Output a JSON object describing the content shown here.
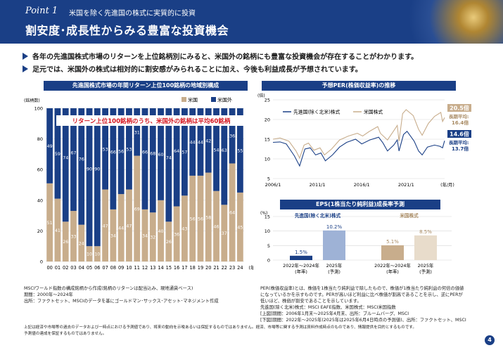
{
  "header": {
    "point_label": "Point 1",
    "point_subtitle": "米国を除く先進国の株式に実質的に投資",
    "title": "割安度･成長性からみる豊富な投資機会"
  },
  "bullets": [
    "各年の先進国株式市場のリターンを上位銘柄別にみると、米国外の銘柄にも豊富な投資機会が存在することがわかります。",
    "足元では、米国外の株式は相対的に割安感がみられることに加え、今後も利益成長が予想されています。"
  ],
  "chart_data": [
    {
      "type": "bar",
      "title": "先進国株式市場の年間リターン上位100銘柄の地域別構成",
      "ylabel": "(銘柄数)",
      "xlabel_suffix": "(年)",
      "ylim": [
        0,
        100
      ],
      "yticks": [
        "0",
        "20",
        "40",
        "60",
        "80",
        "100"
      ],
      "annotation": "リターン上位100銘柄のうち、米国外の銘柄は平均60銘柄",
      "categories": [
        "00",
        "01",
        "02",
        "03",
        "04",
        "05",
        "06",
        "07",
        "08",
        "09",
        "10",
        "11",
        "12",
        "13",
        "14",
        "15",
        "16",
        "17",
        "18",
        "19",
        "20",
        "21",
        "22",
        "23",
        "24"
      ],
      "series": [
        {
          "name": "米国",
          "color": "#c8ad8c",
          "values": [
            51,
            41,
            26,
            33,
            24,
            10,
            10,
            47,
            34,
            44,
            47,
            69,
            34,
            32,
            40,
            26,
            36,
            43,
            56,
            56,
            58,
            46,
            37,
            64,
            45
          ]
        },
        {
          "name": "米国外",
          "color": "#1a3f86",
          "values": [
            49,
            59,
            74,
            67,
            76,
            90,
            90,
            53,
            66,
            56,
            53,
            31,
            66,
            68,
            60,
            74,
            64,
            57,
            44,
            44,
            42,
            54,
            63,
            36,
            55
          ]
        }
      ]
    },
    {
      "type": "line",
      "title": "予想PER(株価収益率)の推移",
      "ylabel": "(倍)",
      "xlabel_suffix": "(年/月)",
      "ylim": [
        5,
        25
      ],
      "yticks": [
        "5",
        "10",
        "15",
        "20",
        "25"
      ],
      "xticks": [
        "2006/1",
        "2011/1",
        "2016/1",
        "2021/1"
      ],
      "series": [
        {
          "name": "先進国(除く北米)株式",
          "color": "#1a3f86",
          "latest": "14.6倍",
          "average_label": "長期平均:",
          "average": "13.7倍"
        },
        {
          "name": "米国株式",
          "color": "#c8ad8c",
          "latest": "20.5倍",
          "average_label": "長期平均:",
          "average": "16.4倍"
        }
      ]
    },
    {
      "type": "bar",
      "title": "EPS(1株当たり純利益)成長率予測",
      "ylabel": "(%)",
      "ylim": [
        0,
        15
      ],
      "yticks": [
        "0",
        "5",
        "10",
        "15"
      ],
      "groups": [
        {
          "name": "先進国(除く北米)株式",
          "color": "#1a3f86",
          "bars": [
            {
              "category": "2022年～2024年(年率)",
              "value": 1.5,
              "label": "1.5%",
              "color": "#1a3f86"
            },
            {
              "category": "2025年(予測)",
              "value": 10.2,
              "label": "10.2%",
              "color": "#9eb2d6"
            }
          ]
        },
        {
          "name": "米国株式",
          "color": "#c8ad8c",
          "bars": [
            {
              "category": "2022年～2024年(年率)",
              "value": 5.1,
              "label": "5.1%",
              "color": "#c8ad8c"
            },
            {
              "category": "2025年(予測)",
              "value": 8.5,
              "label": "8.5%",
              "color": "#e8dccb"
            }
          ]
        }
      ]
    }
  ],
  "notes": {
    "left": [
      "MSCIワールド指数の構成銘柄から作成(銘柄のリターンは配当込み、現地通貨ベース)",
      "期間：2000年～2024年",
      "出所：ファクトセット、MSCIのデータを基にゴールドマン･サックス･アセット･マネジメント作成"
    ],
    "right": [
      "PER(株価収益率)とは、株価を1株当たり純利益で除したもので、株価が1株当たり純利益の何倍の価値",
      "になっているかを示すものです。PERが高いほど利益に比べ株価が割高であることを示し、逆にPERが",
      "低いほど、株価が割安であることを示しています。",
      "先進国(除く北米)株式：MSCI EAFE指数、米国株式：MSCI米国指数",
      "[上図]期間：2006年1月末～2025年4月末、出所：ブルームバーグ、MSCI",
      "[下図]期間：2022年～2025年(2025年は2025年6月4日時点の予測値)、出所：ファクトセット、MSCI"
    ],
    "disclaimer": [
      "上記は経済や市場等の過去のデータおよび一時点における予測値であり、将来の動向を示唆あるいは保証するものではありません。経済、市場等に関する予測は資料作成時点のものであり、情報提供を目的とするものです。",
      "予測値の達成を保証するものではありません。"
    ]
  },
  "page_number": "4"
}
